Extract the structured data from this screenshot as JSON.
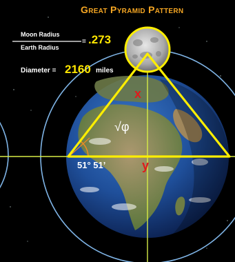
{
  "title": "Great Pyramid Pattern",
  "ratio": {
    "numerator": "Moon Radius",
    "denominator": "Earth Radius",
    "equals": "=",
    "value": ".273"
  },
  "diameter": {
    "label": "Diameter =",
    "value": "2160",
    "unit": "miles"
  },
  "labels": {
    "x": "x",
    "y": "y",
    "phi": "√φ",
    "angle": "51° 51’"
  },
  "colors": {
    "title": "#f5a623",
    "highlight": "#ffe600",
    "variable": "#e01b1b",
    "orbit": "#7fb4e6",
    "pyramid": "#ffee00",
    "crosshair": "#d7ec47",
    "angle_arc": "#f08a24"
  }
}
